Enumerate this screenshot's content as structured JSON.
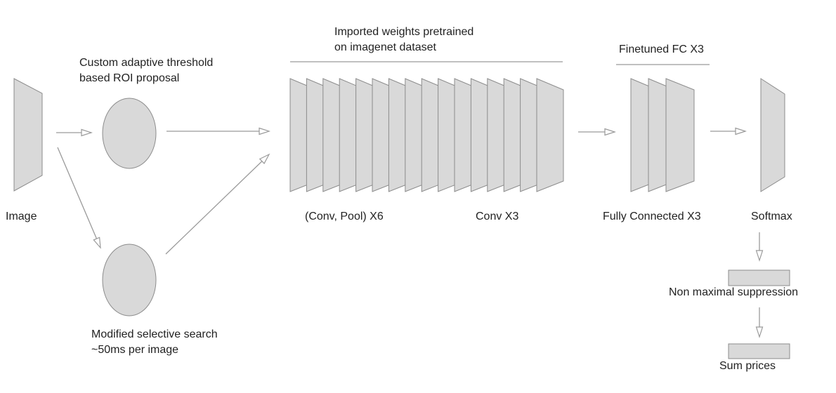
{
  "labels": {
    "image": "Image",
    "roi_proposal_line1": "Custom adaptive threshold",
    "roi_proposal_line2": "based ROI proposal",
    "selective_search_line1": "Modified selective search",
    "selective_search_line2": "~50ms per image",
    "pretrained_line1": "Imported weights pretrained",
    "pretrained_line2": "on imagenet dataset",
    "conv_pool": "(Conv, Pool) X6",
    "conv": "Conv X3",
    "finetuned": "Finetuned FC X3",
    "fully_connected": "Fully Connected X3",
    "softmax": "Softmax",
    "nms": "Non maximal suppression",
    "sum_prices": "Sum prices"
  },
  "layers": {
    "conv_blocks": 16,
    "fc_blocks": 3
  },
  "colors": {
    "shape_fill": "#d9d9d9",
    "shape_stroke": "#8c8c8c",
    "arrow": "#9a9a9a",
    "text": "#222222"
  }
}
